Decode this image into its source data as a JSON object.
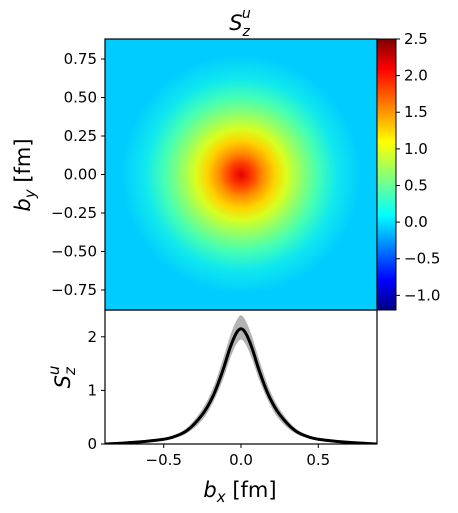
{
  "chart_data": [
    {
      "type": "heatmap",
      "title": {
        "main": "S",
        "sub": "z",
        "sup": "u"
      },
      "ylabel": {
        "main": "b",
        "sub": "y",
        "unit": " [fm]"
      },
      "xlim": [
        -0.88,
        0.88
      ],
      "ylim": [
        -0.88,
        0.88
      ],
      "y_ticks": [
        -0.75,
        -0.5,
        -0.25,
        0.0,
        0.25,
        0.5,
        0.75
      ],
      "y_tick_labels": [
        "−0.75",
        "−0.50",
        "−0.25",
        "0.00",
        "0.25",
        "0.50",
        "0.75"
      ],
      "peak_value": 2.15,
      "peak_location": [
        0.0,
        0.0
      ],
      "background_value": 0.0,
      "colormap": "jet",
      "colorbar": {
        "range": [
          -1.2,
          2.5
        ],
        "ticks": [
          -1.0,
          -0.5,
          0.0,
          0.5,
          1.0,
          1.5,
          2.0,
          2.5
        ],
        "tick_labels": [
          "−1.0",
          "−0.5",
          "0.0",
          "0.5",
          "1.0",
          "1.5",
          "2.0",
          "2.5"
        ]
      }
    },
    {
      "type": "line",
      "ylabel": {
        "main": "S",
        "sub": "z",
        "sup": "u"
      },
      "xlabel": {
        "main": "b",
        "sub": "x",
        "unit": " [fm]"
      },
      "xlim": [
        -0.88,
        0.88
      ],
      "ylim": [
        0,
        2.5
      ],
      "x_ticks": [
        -0.5,
        0.0,
        0.5
      ],
      "x_tick_labels": [
        "−0.5",
        "0.0",
        "0.5"
      ],
      "y_ticks": [
        0,
        1,
        2
      ],
      "y_tick_labels": [
        "0",
        "1",
        "2"
      ],
      "x": [
        -0.88,
        -0.7,
        -0.55,
        -0.45,
        -0.35,
        -0.25,
        -0.18,
        -0.12,
        -0.07,
        -0.03,
        0.0,
        0.03,
        0.07,
        0.12,
        0.18,
        0.25,
        0.35,
        0.45,
        0.55,
        0.7,
        0.88
      ],
      "y": [
        0.0,
        0.03,
        0.07,
        0.12,
        0.25,
        0.55,
        0.9,
        1.35,
        1.8,
        2.07,
        2.15,
        2.07,
        1.8,
        1.35,
        0.9,
        0.55,
        0.25,
        0.12,
        0.07,
        0.03,
        0.0
      ],
      "y_low": [
        0.0,
        0.02,
        0.05,
        0.1,
        0.2,
        0.45,
        0.78,
        1.18,
        1.6,
        1.86,
        1.95,
        1.86,
        1.6,
        1.18,
        0.78,
        0.45,
        0.2,
        0.1,
        0.05,
        0.02,
        0.0
      ],
      "y_high": [
        0.01,
        0.04,
        0.09,
        0.15,
        0.3,
        0.65,
        1.05,
        1.55,
        2.02,
        2.3,
        2.4,
        2.3,
        2.02,
        1.55,
        1.05,
        0.65,
        0.3,
        0.15,
        0.09,
        0.04,
        0.01
      ],
      "line_color": "#000000",
      "band_color": "#b3b3b3"
    }
  ]
}
